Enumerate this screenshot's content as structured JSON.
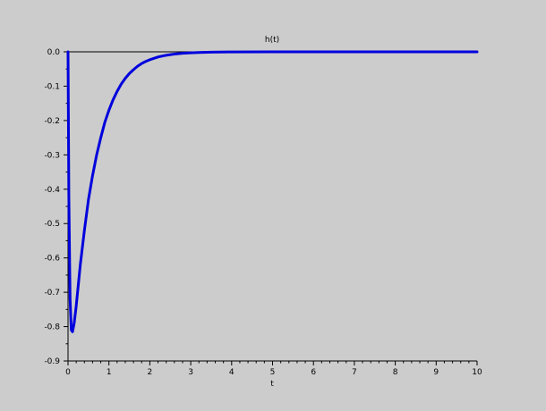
{
  "chart_data": {
    "type": "line",
    "title": "h(t)",
    "xlabel": "t",
    "ylabel": "",
    "xlim": [
      0,
      10
    ],
    "ylim": [
      -0.9,
      0.0
    ],
    "xticks": [
      "0",
      "1",
      "2",
      "3",
      "4",
      "5",
      "6",
      "7",
      "8",
      "9",
      "10"
    ],
    "yticks": [
      "0.0",
      "-0.1",
      "-0.2",
      "-0.3",
      "-0.4",
      "-0.5",
      "-0.6",
      "-0.7",
      "-0.8",
      "-0.9"
    ],
    "grid": false,
    "colors": {
      "background": "#cccccc",
      "plot_area": "#cccccc",
      "line": "#0000dd",
      "axes": "#000000"
    },
    "series": [
      {
        "x": [
          0,
          0.02,
          0.05,
          0.08,
          0.11,
          0.15,
          0.2,
          0.25,
          0.3,
          0.4,
          0.5,
          0.6,
          0.7,
          0.8,
          0.9,
          1.0,
          1.1,
          1.2,
          1.3,
          1.4,
          1.5,
          1.6,
          1.7,
          1.8,
          1.9,
          2.0,
          2.2,
          2.4,
          2.6,
          2.8,
          3.0,
          3.2,
          3.5,
          4.0,
          5.0,
          6.0,
          7.0,
          8.0,
          9.0,
          10.0
        ],
        "y": [
          0,
          -0.42,
          -0.72,
          -0.81,
          -0.815,
          -0.79,
          -0.74,
          -0.68,
          -0.62,
          -0.52,
          -0.43,
          -0.36,
          -0.3,
          -0.25,
          -0.205,
          -0.17,
          -0.14,
          -0.115,
          -0.094,
          -0.077,
          -0.063,
          -0.052,
          -0.042,
          -0.034,
          -0.028,
          -0.023,
          -0.015,
          -0.01,
          -0.0065,
          -0.0042,
          -0.0028,
          -0.0018,
          -0.0009,
          -0.0003,
          0,
          0,
          0,
          0,
          0,
          0
        ]
      }
    ]
  }
}
